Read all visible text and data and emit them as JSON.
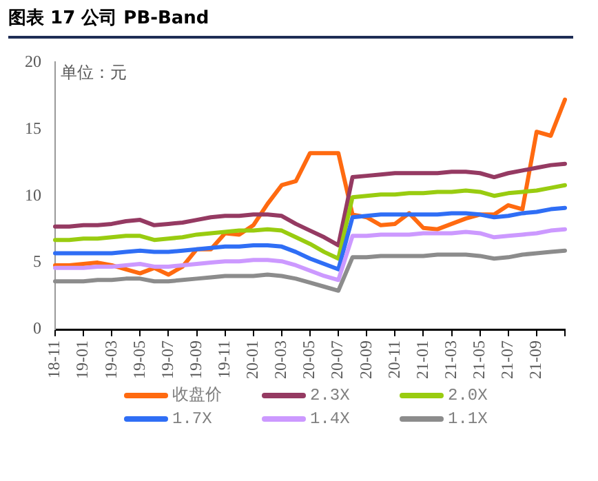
{
  "chart_data": {
    "type": "line",
    "title": "图表 17 公司 PB-Band",
    "annotations": [
      "单位：元"
    ],
    "categories": [
      "18-11",
      null,
      "19-01",
      null,
      "19-03",
      null,
      "19-05",
      null,
      "19-07",
      null,
      "19-09",
      null,
      "19-11",
      null,
      "20-01",
      null,
      "20-03",
      null,
      "20-05",
      null,
      "20-07",
      null,
      "20-09",
      null,
      "20-11",
      null,
      "21-01",
      null,
      "21-03",
      null,
      "21-05",
      null,
      "21-07",
      null,
      "21-09",
      null,
      null
    ],
    "series": [
      {
        "name": "收盘价",
        "color": "#ff6a10",
        "values": [
          4.8,
          4.8,
          4.9,
          5.0,
          4.8,
          4.5,
          4.2,
          4.6,
          4.1,
          4.7,
          6.0,
          6.0,
          7.2,
          7.1,
          7.8,
          9.4,
          10.8,
          11.1,
          13.2,
          13.2,
          13.2,
          8.6,
          8.4,
          7.8,
          7.9,
          8.7,
          7.6,
          7.5,
          7.9,
          8.3,
          8.6,
          8.6,
          9.3,
          9.0,
          14.8,
          14.5,
          17.2
        ]
      },
      {
        "name": "2.3X",
        "color": "#953a62",
        "values": [
          7.7,
          7.7,
          7.8,
          7.8,
          7.9,
          8.1,
          8.2,
          7.8,
          7.9,
          8.0,
          8.2,
          8.4,
          8.5,
          8.5,
          8.6,
          8.6,
          8.5,
          7.9,
          7.4,
          6.9,
          6.3,
          11.4,
          11.5,
          11.6,
          11.7,
          11.7,
          11.7,
          11.7,
          11.8,
          11.8,
          11.7,
          11.4,
          11.7,
          11.9,
          12.1,
          12.3,
          12.4
        ]
      },
      {
        "name": "2.0X",
        "color": "#99cc10",
        "values": [
          6.7,
          6.7,
          6.8,
          6.8,
          6.9,
          7.0,
          7.0,
          6.7,
          6.8,
          6.9,
          7.1,
          7.2,
          7.3,
          7.4,
          7.4,
          7.5,
          7.4,
          6.9,
          6.4,
          5.8,
          5.3,
          9.9,
          10.0,
          10.1,
          10.1,
          10.2,
          10.2,
          10.3,
          10.3,
          10.4,
          10.3,
          10.0,
          10.2,
          10.3,
          10.4,
          10.6,
          10.8
        ]
      },
      {
        "name": "1.7X",
        "color": "#2f6ef5",
        "values": [
          5.7,
          5.7,
          5.7,
          5.7,
          5.7,
          5.8,
          5.9,
          5.8,
          5.8,
          5.9,
          6.0,
          6.1,
          6.2,
          6.2,
          6.3,
          6.3,
          6.2,
          5.8,
          5.3,
          4.9,
          4.5,
          8.4,
          8.5,
          8.6,
          8.6,
          8.6,
          8.6,
          8.6,
          8.7,
          8.7,
          8.6,
          8.4,
          8.5,
          8.7,
          8.8,
          9.0,
          9.1
        ]
      },
      {
        "name": "1.4X",
        "color": "#cc99ff",
        "values": [
          4.6,
          4.6,
          4.6,
          4.7,
          4.7,
          4.8,
          4.9,
          4.7,
          4.7,
          4.8,
          4.9,
          5.0,
          5.1,
          5.1,
          5.2,
          5.2,
          5.1,
          4.8,
          4.4,
          4.0,
          3.7,
          7.0,
          7.0,
          7.1,
          7.1,
          7.1,
          7.2,
          7.2,
          7.2,
          7.3,
          7.2,
          6.9,
          7.0,
          7.1,
          7.2,
          7.4,
          7.5
        ]
      },
      {
        "name": "1.1X",
        "color": "#8c8c8c",
        "values": [
          3.6,
          3.6,
          3.6,
          3.7,
          3.7,
          3.8,
          3.8,
          3.6,
          3.6,
          3.7,
          3.8,
          3.9,
          4.0,
          4.0,
          4.0,
          4.1,
          4.0,
          3.8,
          3.5,
          3.2,
          2.9,
          5.4,
          5.4,
          5.5,
          5.5,
          5.5,
          5.5,
          5.6,
          5.6,
          5.6,
          5.5,
          5.3,
          5.4,
          5.6,
          5.7,
          5.8,
          5.9
        ]
      }
    ],
    "ylim": [
      0,
      20
    ],
    "yticks": [
      0,
      5,
      10,
      15,
      20
    ],
    "grid": false,
    "legend": "bottom",
    "marker": "none",
    "line_style": "solid"
  }
}
